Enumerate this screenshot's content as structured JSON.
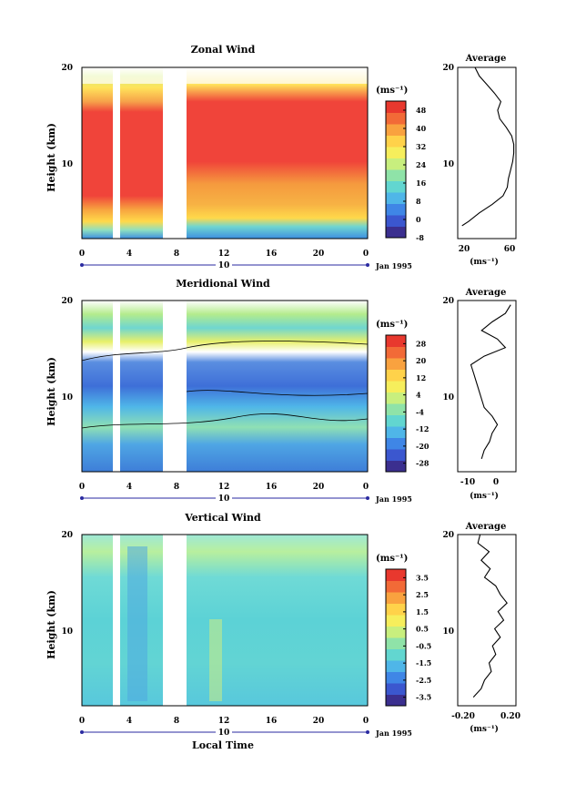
{
  "chart_data": [
    {
      "type": "heatmap",
      "title": "Zonal Wind",
      "ylabel": "Height (km)",
      "xlabel": "",
      "y_ticks": [
        "20",
        "10"
      ],
      "x_ticks": [
        "0",
        "4",
        "8",
        "12",
        "16",
        "20",
        "0"
      ],
      "date_marker": "10",
      "date_label": "Jan 1995",
      "unit": "(ms⁻¹)",
      "colorbar_ticks": [
        "48",
        "40",
        "32",
        "24",
        "16",
        "8",
        "0",
        "-8"
      ],
      "colorbar_range": [
        -8,
        52
      ],
      "average": {
        "title": "Average",
        "x_ticks": [
          "20",
          "60"
        ],
        "xlim": [
          10,
          64
        ],
        "xunit": "(ms⁻¹)",
        "y_ticks": [
          "20",
          "10"
        ],
        "profile": [
          [
            14,
            1.5
          ],
          [
            20,
            2
          ],
          [
            30,
            3
          ],
          [
            42,
            4
          ],
          [
            52,
            5
          ],
          [
            56,
            6
          ],
          [
            57,
            7
          ],
          [
            59,
            8
          ],
          [
            61,
            9
          ],
          [
            62,
            10
          ],
          [
            62,
            11
          ],
          [
            60,
            12
          ],
          [
            55,
            13
          ],
          [
            49,
            14
          ],
          [
            47,
            15
          ],
          [
            50,
            16
          ],
          [
            44,
            17
          ],
          [
            37,
            18
          ],
          [
            30,
            19
          ],
          [
            26,
            20
          ]
        ]
      }
    },
    {
      "type": "heatmap",
      "title": "Meridional Wind",
      "ylabel": "Height (km)",
      "xlabel": "",
      "y_ticks": [
        "20",
        "10"
      ],
      "x_ticks": [
        "0",
        "4",
        "8",
        "12",
        "16",
        "20",
        "0"
      ],
      "date_marker": "10",
      "date_label": "Jan 1995",
      "unit": "(ms⁻¹)",
      "colorbar_ticks": [
        "28",
        "20",
        "12",
        "4",
        "-4",
        "-12",
        "-20",
        "-28"
      ],
      "colorbar_range": [
        -32,
        32
      ],
      "average": {
        "title": "Average",
        "x_ticks": [
          "-10",
          "0"
        ],
        "xlim": [
          -15,
          7
        ],
        "xunit": "(ms⁻¹)",
        "y_ticks": [
          "20",
          "10"
        ],
        "profile": [
          [
            -6,
            1.5
          ],
          [
            -5,
            2.5
          ],
          [
            -3,
            3.5
          ],
          [
            -2,
            4.5
          ],
          [
            0,
            5.5
          ],
          [
            -2,
            6.5
          ],
          [
            -5,
            7.5
          ],
          [
            -6,
            8.5
          ],
          [
            -7,
            9.5
          ],
          [
            -8,
            10.5
          ],
          [
            -9,
            11.5
          ],
          [
            -10,
            12.5
          ],
          [
            -5,
            13.5
          ],
          [
            3,
            14.5
          ],
          [
            0,
            15.5
          ],
          [
            -6,
            16.5
          ],
          [
            -2,
            17.5
          ],
          [
            3,
            18.5
          ],
          [
            5,
            19.5
          ]
        ]
      }
    },
    {
      "type": "heatmap",
      "title": "Vertical Wind",
      "ylabel": "Height (km)",
      "xlabel": "Local Time",
      "y_ticks": [
        "20",
        "10"
      ],
      "x_ticks": [
        "0",
        "4",
        "8",
        "12",
        "16",
        "20",
        "0"
      ],
      "date_marker": "10",
      "date_label": "Jan 1995",
      "unit": "(ms⁻¹)",
      "colorbar_ticks": [
        "3.5",
        "2.5",
        "1.5",
        "0.5",
        "-0.5",
        "-1.5",
        "-2.5",
        "-3.5"
      ],
      "colorbar_range": [
        -4,
        4
      ],
      "average": {
        "title": "Average",
        "x_ticks": [
          "-0.20",
          "0.20"
        ],
        "xlim": [
          -0.26,
          0.26
        ],
        "xunit": "(ms⁻¹)",
        "y_ticks": [
          "20",
          "10"
        ],
        "profile": [
          [
            -0.12,
            1
          ],
          [
            -0.05,
            2
          ],
          [
            -0.02,
            3
          ],
          [
            0.04,
            4
          ],
          [
            0.02,
            5
          ],
          [
            0.08,
            6
          ],
          [
            0.05,
            7
          ],
          [
            0.12,
            8
          ],
          [
            0.07,
            9
          ],
          [
            0.15,
            10
          ],
          [
            0.1,
            11
          ],
          [
            0.18,
            12
          ],
          [
            0.12,
            13
          ],
          [
            0.08,
            14
          ],
          [
            -0.02,
            15
          ],
          [
            0.03,
            16
          ],
          [
            -0.05,
            17
          ],
          [
            0.02,
            18
          ],
          [
            -0.08,
            19
          ],
          [
            -0.06,
            20
          ]
        ]
      }
    }
  ],
  "colors": {
    "white": "#ffffff",
    "axis": "#000000",
    "range_line": "#2a2aa0"
  }
}
